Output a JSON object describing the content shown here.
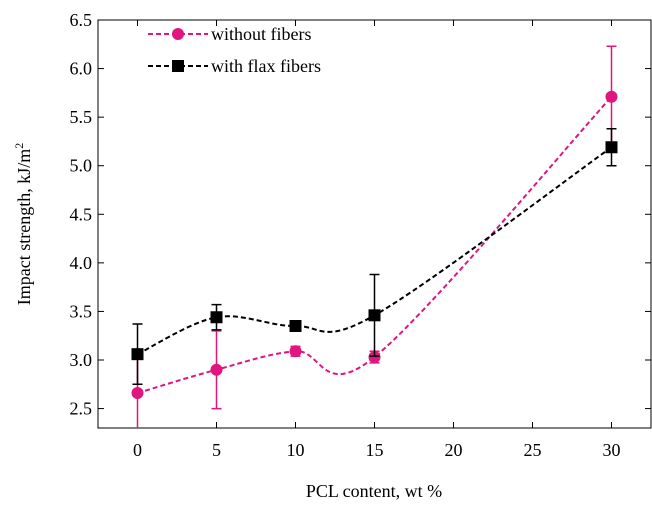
{
  "chart_data": {
    "type": "line",
    "x_label": "PCL content, wt %",
    "y_label": "Impact strength, kJ/m",
    "y_label_superscript": "2",
    "x": [
      0,
      5,
      10,
      15,
      30
    ],
    "series": [
      {
        "name": "without fibers",
        "color": "#e0157f",
        "marker": "circle",
        "values": [
          2.66,
          2.9,
          3.09,
          3.03,
          5.71
        ],
        "errors": [
          0.4,
          0.4,
          0.05,
          0.06,
          0.52
        ]
      },
      {
        "name": "with flax fibers",
        "color": "#000000",
        "marker": "square",
        "values": [
          3.06,
          3.44,
          3.35,
          3.46,
          5.19
        ],
        "errors": [
          0.31,
          0.13,
          0.03,
          0.42,
          0.19
        ]
      }
    ],
    "xlim": [
      -2.5,
      32.5
    ],
    "xticks": [
      0,
      5,
      10,
      15,
      20,
      25,
      30
    ],
    "ylim": [
      2.3,
      6.5
    ],
    "yticks": [
      2.5,
      {
        "value": 3,
        "label": "3.0"
      },
      3.5,
      {
        "value": 4,
        "label": "4.0"
      },
      4.5,
      {
        "value": 5,
        "label": "5.0"
      },
      5.5,
      {
        "value": 6,
        "label": "6.0"
      },
      6.5
    ],
    "legend": "upper-left"
  }
}
